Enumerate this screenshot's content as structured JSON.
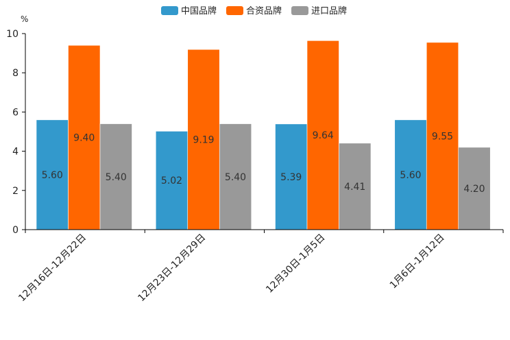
{
  "chart_data": {
    "type": "bar",
    "title": "",
    "ylabel": "%",
    "xlabel": "",
    "ylim": [
      0,
      10
    ],
    "yticks": [
      0,
      2,
      4,
      6,
      8,
      10
    ],
    "legend_position": "top-center",
    "categories": [
      "12月16日-12月22日",
      "12月23日-12月29日",
      "12月30日-1月5日",
      "1月6日-1月12日"
    ],
    "series": [
      {
        "name": "中国品牌",
        "color": "#3399cc",
        "values": [
          5.6,
          5.02,
          5.39,
          5.6
        ],
        "labels": [
          "5.60",
          "5.02",
          "5.39",
          "5.60"
        ]
      },
      {
        "name": "合资品牌",
        "color": "#ff6600",
        "values": [
          9.4,
          9.19,
          9.64,
          9.55
        ],
        "labels": [
          "9.40",
          "9.19",
          "9.64",
          "9.55"
        ]
      },
      {
        "name": "进口品牌",
        "color": "#999999",
        "values": [
          5.4,
          5.4,
          4.41,
          4.2
        ],
        "labels": [
          "5.40",
          "5.40",
          "4.41",
          "4.20"
        ]
      }
    ]
  }
}
